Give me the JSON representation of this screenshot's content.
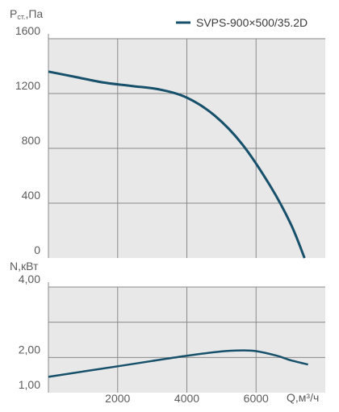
{
  "chart_data": [
    {
      "type": "line",
      "ylabel_main": "P",
      "ylabel_sub": "ст.",
      "ylabel_unit": ",Па",
      "ylim": [
        0,
        1600
      ],
      "xlim": [
        0,
        8000
      ],
      "yticks": [
        0,
        400,
        800,
        1200,
        1600
      ],
      "ytick_labels": [
        "0",
        "400",
        "800",
        "1200",
        "1600"
      ],
      "grid": true,
      "legend": {
        "position": "top-right",
        "label": "SVPS-900×500/35.2D"
      },
      "color": "#17506a",
      "series": [
        {
          "name": "SVPS-900×500/35.2D",
          "x": [
            0,
            800,
            1600,
            2400,
            3200,
            4000,
            4800,
            5600,
            6400,
            7000,
            7400
          ],
          "y": [
            1360,
            1320,
            1280,
            1255,
            1230,
            1170,
            1040,
            830,
            530,
            250,
            0
          ]
        }
      ]
    },
    {
      "type": "line",
      "ylabel": "N,кВт",
      "xlabel": "Q,м³/ч",
      "ylim": [
        1.0,
        4.0
      ],
      "xlim": [
        0,
        8000
      ],
      "yticks": [
        1,
        2,
        3,
        4
      ],
      "ytick_labels": [
        "1,00",
        "2,00",
        "",
        "4,00"
      ],
      "xticks": [
        2000,
        4000,
        6000
      ],
      "xtick_labels": [
        "2000",
        "4000",
        "6000"
      ],
      "grid": true,
      "color": "#17506a",
      "series": [
        {
          "x": [
            0,
            1000,
            2000,
            3000,
            4000,
            5000,
            5600,
            6000,
            6600,
            7000,
            7500
          ],
          "y": [
            1.45,
            1.6,
            1.75,
            1.9,
            2.05,
            2.17,
            2.2,
            2.18,
            2.05,
            1.92,
            1.8
          ]
        }
      ]
    }
  ]
}
